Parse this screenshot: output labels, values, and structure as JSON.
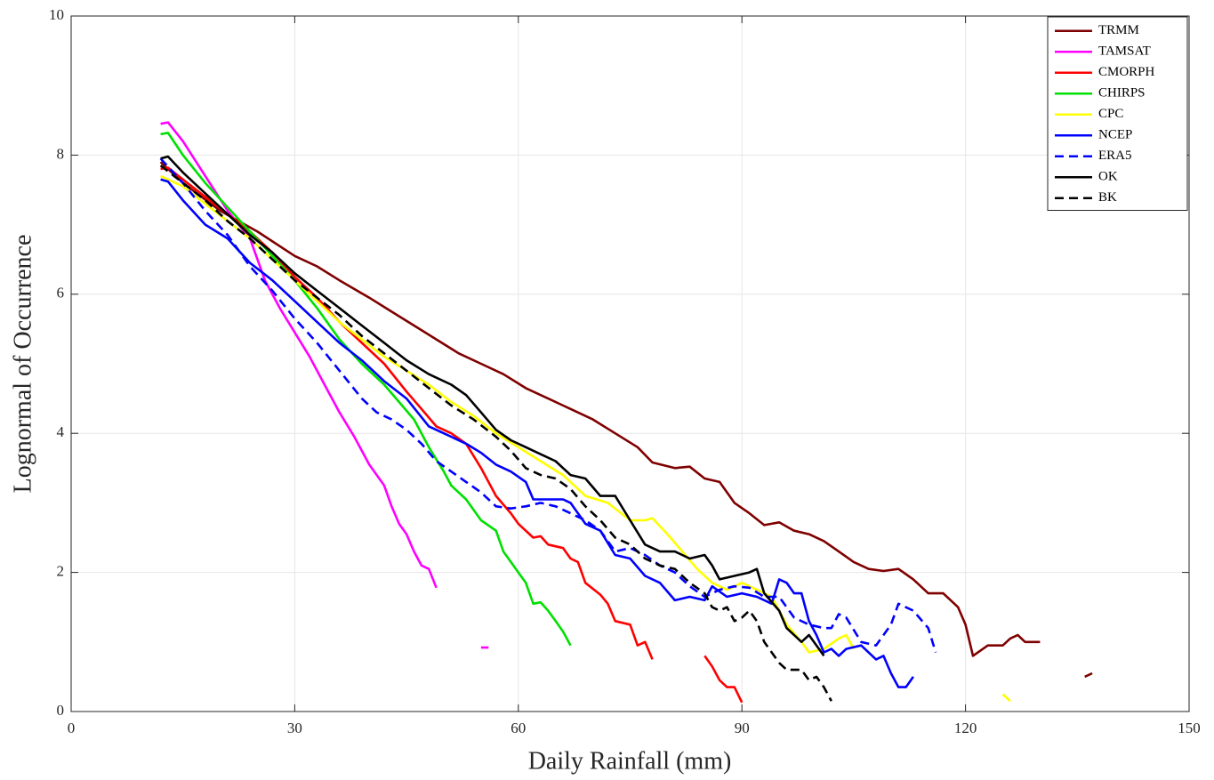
{
  "chart_data": {
    "type": "line",
    "xlabel": "Daily Rainfall (mm)",
    "ylabel": "Lognormal of Occurrence",
    "xlim": [
      0,
      150
    ],
    "ylim": [
      0,
      10
    ],
    "xticks": [
      0,
      30,
      60,
      90,
      120,
      150
    ],
    "yticks": [
      0,
      2,
      4,
      6,
      8,
      10
    ],
    "grid": true,
    "legend": "upper right",
    "series": [
      {
        "name": "TRMM",
        "color": "#7f0000",
        "style": "solid",
        "x": [
          12,
          15,
          20,
          25,
          30,
          33,
          36,
          40,
          43,
          46,
          49,
          52,
          55,
          58,
          61,
          64,
          67,
          70,
          73,
          76,
          78,
          81,
          83,
          85,
          87,
          89,
          91,
          93,
          95,
          97,
          99,
          101,
          103,
          105,
          107,
          109,
          111,
          113,
          115,
          117,
          119,
          120,
          121,
          123,
          125,
          126,
          127,
          128,
          130,
          131,
          136,
          137
        ],
        "values": [
          7.9,
          7.6,
          7.2,
          6.9,
          6.55,
          6.4,
          6.2,
          5.95,
          5.75,
          5.55,
          5.35,
          5.15,
          5.0,
          4.85,
          4.65,
          4.5,
          4.35,
          4.2,
          4.0,
          3.8,
          3.58,
          3.5,
          3.52,
          3.35,
          3.3,
          3.0,
          2.85,
          2.68,
          2.72,
          2.6,
          2.55,
          2.45,
          2.3,
          2.15,
          2.05,
          2.02,
          2.05,
          1.9,
          1.7,
          1.7,
          1.5,
          1.25,
          0.8,
          0.95,
          0.95,
          1.05,
          1.1,
          1.0,
          1.0,
          null,
          0.5,
          0.55
        ]
      },
      {
        "name": "TAMSAT",
        "color": "#ff00ff",
        "style": "solid",
        "x": [
          12,
          13,
          15,
          18,
          21,
          24,
          26,
          28,
          30,
          32,
          34,
          36,
          38,
          40,
          42,
          43,
          44,
          45,
          46,
          47,
          48,
          49,
          50,
          55,
          56
        ],
        "values": [
          8.45,
          8.47,
          8.2,
          7.7,
          7.2,
          6.8,
          6.2,
          5.8,
          5.45,
          5.1,
          4.7,
          4.3,
          3.95,
          3.55,
          3.25,
          2.95,
          2.7,
          2.55,
          2.3,
          2.1,
          2.05,
          1.78,
          null,
          0.92,
          0.92
        ]
      },
      {
        "name": "CMORPH",
        "color": "#ff0000",
        "style": "solid",
        "x": [
          12,
          13,
          15,
          18,
          21,
          24,
          27,
          30,
          33,
          36,
          39,
          42,
          45,
          47,
          49,
          51,
          53,
          55,
          57,
          59,
          60,
          62,
          63,
          64,
          66,
          67,
          68,
          69,
          71,
          72,
          73,
          75,
          76,
          77,
          78,
          80,
          85,
          86,
          87,
          88,
          89,
          90
        ],
        "values": [
          7.8,
          7.82,
          7.65,
          7.4,
          7.15,
          6.9,
          6.6,
          6.25,
          5.95,
          5.6,
          5.3,
          5.0,
          4.6,
          4.35,
          4.1,
          4.0,
          3.85,
          3.5,
          3.1,
          2.85,
          2.7,
          2.5,
          2.52,
          2.4,
          2.35,
          2.2,
          2.15,
          1.85,
          1.68,
          1.55,
          1.3,
          1.25,
          0.95,
          1.0,
          0.75,
          null,
          0.8,
          0.65,
          0.45,
          0.35,
          0.35,
          0.13
        ]
      },
      {
        "name": "CHIRPS",
        "color": "#00e000",
        "style": "solid",
        "x": [
          12,
          13,
          15,
          18,
          21,
          24,
          27,
          30,
          33,
          36,
          39,
          42,
          44,
          46,
          48,
          50,
          51,
          53,
          55,
          57,
          58,
          60,
          61,
          62,
          63,
          64,
          65,
          66,
          67
        ],
        "values": [
          8.3,
          8.32,
          8.0,
          7.6,
          7.25,
          6.9,
          6.55,
          6.2,
          5.8,
          5.35,
          5.0,
          4.7,
          4.45,
          4.2,
          3.8,
          3.45,
          3.25,
          3.05,
          2.75,
          2.6,
          2.3,
          2.0,
          1.85,
          1.55,
          1.57,
          1.45,
          1.3,
          1.15,
          0.95
        ]
      },
      {
        "name": "CPC",
        "color": "#ffff00",
        "style": "solid",
        "x": [
          12,
          15,
          18,
          21,
          24,
          27,
          30,
          33,
          36,
          39,
          42,
          45,
          48,
          51,
          54,
          57,
          60,
          63,
          66,
          69,
          72,
          75,
          77,
          78,
          80,
          82,
          84,
          86,
          88,
          90,
          92,
          94,
          96,
          98,
          99,
          101,
          103,
          104,
          105,
          110,
          125,
          126
        ],
        "values": [
          7.7,
          7.55,
          7.3,
          7.05,
          6.8,
          6.5,
          6.2,
          5.9,
          5.6,
          5.35,
          5.1,
          4.9,
          4.7,
          4.45,
          4.25,
          4.0,
          3.8,
          3.6,
          3.4,
          3.1,
          3.0,
          2.75,
          2.75,
          2.78,
          2.55,
          2.3,
          2.05,
          1.85,
          1.75,
          1.85,
          1.75,
          1.65,
          1.25,
          1.0,
          0.85,
          0.9,
          1.05,
          1.1,
          0.9,
          null,
          0.25,
          0.15
        ]
      },
      {
        "name": "NCEP",
        "color": "#0000ff",
        "style": "solid",
        "x": [
          12,
          13,
          15,
          18,
          21,
          24,
          27,
          30,
          33,
          36,
          39,
          42,
          45,
          48,
          51,
          53,
          55,
          57,
          59,
          61,
          62,
          64,
          66,
          67,
          69,
          71,
          73,
          75,
          77,
          79,
          81,
          83,
          85,
          86,
          88,
          90,
          92,
          94,
          95,
          96,
          97,
          98,
          99,
          100,
          101,
          102,
          103,
          104,
          106,
          108,
          109,
          110,
          111,
          112,
          113
        ],
        "values": [
          7.65,
          7.62,
          7.35,
          7.0,
          6.8,
          6.45,
          6.2,
          5.9,
          5.6,
          5.3,
          5.05,
          4.75,
          4.5,
          4.1,
          3.95,
          3.85,
          3.72,
          3.55,
          3.45,
          3.3,
          3.05,
          3.05,
          3.05,
          3.0,
          2.7,
          2.6,
          2.25,
          2.2,
          1.95,
          1.85,
          1.6,
          1.65,
          1.6,
          1.8,
          1.65,
          1.7,
          1.65,
          1.55,
          1.9,
          1.85,
          1.7,
          1.7,
          1.3,
          1.1,
          0.85,
          0.9,
          0.8,
          0.9,
          0.95,
          0.75,
          0.8,
          0.55,
          0.35,
          0.35,
          0.5
        ]
      },
      {
        "name": "ERA5",
        "color": "#0000ff",
        "style": "dashed",
        "x": [
          12,
          15,
          18,
          21,
          24,
          27,
          30,
          33,
          36,
          39,
          41,
          43,
          45,
          47,
          49,
          51,
          53,
          55,
          57,
          59,
          61,
          63,
          65,
          67,
          69,
          71,
          73,
          75,
          77,
          79,
          81,
          83,
          85,
          87,
          89,
          91,
          93,
          95,
          97,
          99,
          101,
          102,
          103,
          104,
          106,
          108,
          110,
          111,
          113,
          115,
          116
        ],
        "values": [
          7.95,
          7.6,
          7.2,
          6.85,
          6.4,
          6.05,
          5.65,
          5.3,
          4.9,
          4.5,
          4.3,
          4.2,
          4.05,
          3.85,
          3.6,
          3.45,
          3.3,
          3.15,
          2.95,
          2.92,
          2.95,
          3.0,
          2.95,
          2.85,
          2.75,
          2.6,
          2.3,
          2.35,
          2.25,
          2.1,
          2.0,
          1.8,
          1.65,
          1.75,
          1.8,
          1.78,
          1.65,
          1.65,
          1.35,
          1.25,
          1.2,
          1.2,
          1.4,
          1.35,
          1.0,
          0.95,
          1.25,
          1.55,
          1.45,
          1.2,
          0.85
        ]
      },
      {
        "name": "OK",
        "color": "#000000",
        "style": "solid",
        "x": [
          12,
          13,
          15,
          18,
          21,
          24,
          27,
          30,
          33,
          36,
          39,
          42,
          45,
          48,
          51,
          53,
          55,
          57,
          59,
          61,
          63,
          65,
          67,
          69,
          71,
          73,
          75,
          77,
          79,
          81,
          83,
          85,
          86,
          87,
          89,
          91,
          92,
          93,
          95,
          96,
          98,
          99,
          101
        ],
        "values": [
          7.95,
          7.98,
          7.75,
          7.45,
          7.15,
          6.85,
          6.6,
          6.3,
          6.05,
          5.8,
          5.55,
          5.3,
          5.05,
          4.85,
          4.7,
          4.55,
          4.3,
          4.05,
          3.9,
          3.8,
          3.7,
          3.6,
          3.4,
          3.35,
          3.1,
          3.1,
          2.75,
          2.4,
          2.3,
          2.3,
          2.2,
          2.25,
          2.1,
          1.9,
          1.95,
          2.0,
          2.05,
          1.7,
          1.45,
          1.2,
          1.0,
          1.1,
          0.8
        ]
      },
      {
        "name": "BK",
        "color": "#000000",
        "style": "dashed",
        "x": [
          12,
          15,
          18,
          21,
          24,
          27,
          30,
          33,
          36,
          39,
          42,
          45,
          48,
          51,
          54,
          57,
          59,
          61,
          63,
          65,
          67,
          69,
          71,
          73,
          75,
          77,
          79,
          81,
          83,
          85,
          86,
          87,
          88,
          89,
          90,
          91,
          92,
          93,
          95,
          96,
          98,
          99,
          100,
          101,
          102
        ],
        "values": [
          7.85,
          7.6,
          7.35,
          7.05,
          6.8,
          6.5,
          6.2,
          5.95,
          5.7,
          5.4,
          5.15,
          4.9,
          4.65,
          4.4,
          4.2,
          3.95,
          3.75,
          3.5,
          3.4,
          3.35,
          3.2,
          2.95,
          2.75,
          2.5,
          2.4,
          2.2,
          2.1,
          2.05,
          1.85,
          1.7,
          1.5,
          1.45,
          1.5,
          1.3,
          1.35,
          1.45,
          1.3,
          1.0,
          0.7,
          0.6,
          0.6,
          0.45,
          0.5,
          0.35,
          0.15
        ]
      }
    ]
  }
}
